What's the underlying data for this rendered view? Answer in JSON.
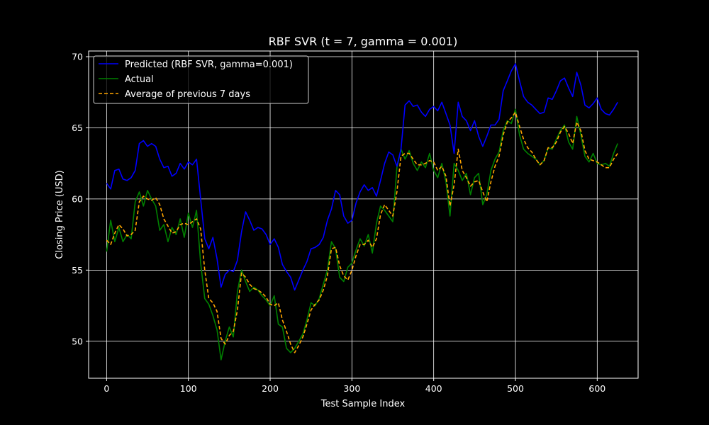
{
  "colors": {
    "background": "#000000",
    "foreground": "#ffffff",
    "predicted": "#0000ff",
    "actual": "#008000",
    "average": "#ffa500",
    "grid": "#ffffff"
  },
  "chart_data": {
    "type": "line",
    "title": "RBF SVR (t = 7, gamma = 0.001)",
    "xlabel": "Test Sample Index",
    "ylabel": "Closing Price (USD)",
    "xlim": [
      -22,
      650
    ],
    "ylim": [
      47.4,
      70.4
    ],
    "xticks": [
      0,
      100,
      200,
      300,
      400,
      500,
      600
    ],
    "yticks": [
      50,
      55,
      60,
      65,
      70
    ],
    "grid": true,
    "legend_position": "top-left",
    "series": [
      {
        "name": "Predicted (RBF SVR, gamma=0.001)",
        "color": "#0000ff",
        "style": "solid",
        "x": [
          0,
          5,
          10,
          15,
          20,
          25,
          30,
          35,
          40,
          45,
          50,
          55,
          60,
          65,
          70,
          75,
          80,
          85,
          90,
          95,
          100,
          105,
          110,
          115,
          120,
          125,
          130,
          135,
          140,
          145,
          150,
          155,
          160,
          165,
          170,
          175,
          180,
          185,
          190,
          195,
          200,
          205,
          210,
          215,
          220,
          225,
          230,
          235,
          240,
          245,
          250,
          255,
          260,
          265,
          270,
          275,
          280,
          285,
          290,
          295,
          300,
          305,
          310,
          315,
          320,
          325,
          330,
          335,
          340,
          345,
          350,
          355,
          360,
          365,
          370,
          375,
          380,
          385,
          390,
          395,
          400,
          405,
          410,
          415,
          420,
          425,
          430,
          435,
          440,
          445,
          450,
          455,
          460,
          465,
          470,
          475,
          480,
          485,
          490,
          495,
          500,
          505,
          510,
          515,
          520,
          525,
          530,
          535,
          540,
          545,
          550,
          555,
          560,
          565,
          570,
          575,
          580,
          585,
          590,
          595,
          600,
          605,
          610,
          615,
          620,
          625
        ],
        "y": [
          61.1,
          60.7,
          62.0,
          62.1,
          61.4,
          61.3,
          61.5,
          62.0,
          63.9,
          64.1,
          63.7,
          63.9,
          63.7,
          62.8,
          62.2,
          62.3,
          61.6,
          61.8,
          62.5,
          62.1,
          62.6,
          62.4,
          62.8,
          60.0,
          57.2,
          56.5,
          57.3,
          55.8,
          53.8,
          54.7,
          55.0,
          54.9,
          55.7,
          57.7,
          59.1,
          58.5,
          57.8,
          58.0,
          57.9,
          57.5,
          56.8,
          57.2,
          56.6,
          55.4,
          54.9,
          54.5,
          53.6,
          54.3,
          55.0,
          55.6,
          56.5,
          56.6,
          56.8,
          57.3,
          58.5,
          59.3,
          60.6,
          60.3,
          58.8,
          58.3,
          58.5,
          59.7,
          60.5,
          61.0,
          60.6,
          60.8,
          60.2,
          61.3,
          62.5,
          63.3,
          63.1,
          62.3,
          63.5,
          66.6,
          66.9,
          66.5,
          66.6,
          66.1,
          65.8,
          66.3,
          66.5,
          66.2,
          66.8,
          66.0,
          65.2,
          63.2,
          66.8,
          65.8,
          65.5,
          64.8,
          65.5,
          64.4,
          63.7,
          64.4,
          65.2,
          65.2,
          65.6,
          67.6,
          68.3,
          69.0,
          69.5,
          68.3,
          67.2,
          66.8,
          66.6,
          66.3,
          66.0,
          66.1,
          67.1,
          67.0,
          67.6,
          68.3,
          68.5,
          67.8,
          67.2,
          68.9,
          68.0,
          66.6,
          66.4,
          66.7,
          67.1,
          66.3,
          66.0,
          65.9,
          66.3,
          66.8
        ]
      },
      {
        "name": "Actual",
        "color": "#008000",
        "style": "solid",
        "x": [
          0,
          5,
          10,
          15,
          20,
          25,
          30,
          35,
          40,
          45,
          50,
          55,
          60,
          65,
          70,
          75,
          80,
          85,
          90,
          95,
          100,
          105,
          110,
          115,
          120,
          125,
          130,
          135,
          140,
          145,
          150,
          155,
          160,
          165,
          170,
          175,
          180,
          185,
          190,
          195,
          200,
          205,
          210,
          215,
          220,
          225,
          230,
          235,
          240,
          245,
          250,
          255,
          260,
          265,
          270,
          275,
          280,
          285,
          290,
          295,
          300,
          305,
          310,
          315,
          320,
          325,
          330,
          335,
          340,
          345,
          350,
          355,
          360,
          365,
          370,
          375,
          380,
          385,
          390,
          395,
          400,
          405,
          410,
          415,
          420,
          425,
          430,
          435,
          440,
          445,
          450,
          455,
          460,
          465,
          470,
          475,
          480,
          485,
          490,
          495,
          500,
          505,
          510,
          515,
          520,
          525,
          530,
          535,
          540,
          545,
          550,
          555,
          560,
          565,
          570,
          575,
          580,
          585,
          590,
          595,
          600,
          605,
          610,
          615,
          620,
          625
        ],
        "y": [
          56.3,
          58.5,
          57.0,
          58.0,
          57.0,
          57.5,
          57.2,
          59.8,
          60.5,
          59.5,
          60.6,
          60.0,
          59.5,
          57.8,
          58.2,
          57.0,
          58.0,
          57.5,
          58.6,
          57.3,
          59.0,
          58.0,
          59.2,
          55.5,
          53.0,
          52.6,
          51.8,
          50.8,
          48.7,
          50.0,
          51.0,
          50.3,
          53.5,
          55.0,
          54.2,
          53.5,
          53.8,
          53.6,
          53.2,
          52.9,
          52.5,
          53.2,
          51.2,
          51.0,
          49.5,
          49.2,
          49.5,
          50.0,
          50.5,
          51.5,
          52.7,
          52.5,
          53.0,
          54.0,
          55.0,
          57.0,
          56.5,
          54.5,
          54.2,
          55.2,
          55.5,
          56.4,
          57.2,
          56.7,
          57.5,
          56.2,
          58.3,
          59.5,
          59.2,
          58.8,
          58.4,
          62.2,
          63.5,
          62.8,
          63.4,
          62.5,
          62.0,
          62.6,
          62.2,
          63.2,
          62.0,
          61.5,
          62.5,
          61.2,
          58.8,
          62.5,
          62.0,
          61.3,
          61.8,
          60.3,
          61.5,
          61.8,
          59.6,
          60.3,
          62.0,
          62.8,
          63.3,
          64.8,
          65.5,
          65.3,
          66.3,
          64.5,
          63.5,
          63.2,
          63.0,
          62.8,
          62.4,
          62.7,
          63.6,
          63.5,
          64.2,
          64.8,
          65.2,
          64.0,
          63.5,
          65.8,
          64.5,
          63.0,
          62.6,
          63.2,
          62.5,
          62.4,
          62.5,
          62.3,
          63.2,
          63.9
        ]
      },
      {
        "name": "Average of previous 7 days",
        "color": "#ffa500",
        "style": "dashed",
        "x": [
          0,
          5,
          10,
          15,
          20,
          25,
          30,
          35,
          40,
          45,
          50,
          55,
          60,
          65,
          70,
          75,
          80,
          85,
          90,
          95,
          100,
          105,
          110,
          115,
          120,
          125,
          130,
          135,
          140,
          145,
          150,
          155,
          160,
          165,
          170,
          175,
          180,
          185,
          190,
          195,
          200,
          205,
          210,
          215,
          220,
          225,
          230,
          235,
          240,
          245,
          250,
          255,
          260,
          265,
          270,
          275,
          280,
          285,
          290,
          295,
          300,
          305,
          310,
          315,
          320,
          325,
          330,
          335,
          340,
          345,
          350,
          355,
          360,
          365,
          370,
          375,
          380,
          385,
          390,
          395,
          400,
          405,
          410,
          415,
          420,
          425,
          430,
          435,
          440,
          445,
          450,
          455,
          460,
          465,
          470,
          475,
          480,
          485,
          490,
          495,
          500,
          505,
          510,
          515,
          520,
          525,
          530,
          535,
          540,
          545,
          550,
          555,
          560,
          565,
          570,
          575,
          580,
          585,
          590,
          595,
          600,
          605,
          610,
          615,
          620,
          625
        ],
        "y": [
          57.1,
          56.8,
          57.6,
          58.2,
          57.9,
          57.4,
          57.5,
          57.8,
          59.8,
          60.2,
          60.0,
          59.9,
          60.1,
          59.6,
          58.6,
          58.1,
          57.6,
          57.7,
          58.2,
          58.3,
          58.2,
          58.4,
          58.6,
          57.9,
          55.0,
          53.0,
          52.7,
          52.1,
          50.2,
          49.8,
          50.4,
          50.7,
          52.2,
          54.8,
          54.5,
          54.0,
          53.7,
          53.6,
          53.4,
          53.1,
          52.6,
          52.5,
          52.7,
          51.5,
          50.7,
          49.8,
          49.2,
          49.7,
          50.3,
          51.2,
          52.2,
          52.6,
          52.9,
          53.6,
          54.6,
          56.5,
          56.6,
          55.3,
          54.6,
          54.3,
          55.0,
          56.0,
          56.8,
          56.8,
          57.1,
          56.6,
          57.2,
          58.9,
          59.6,
          59.2,
          58.8,
          60.5,
          63.0,
          63.2,
          63.2,
          62.8,
          62.4,
          62.4,
          62.5,
          62.7,
          62.6,
          62.0,
          62.3,
          61.6,
          59.5,
          61.0,
          63.5,
          62.0,
          61.5,
          60.9,
          61.2,
          61.3,
          60.5,
          59.8,
          61.2,
          62.3,
          63.0,
          64.5,
          65.4,
          65.7,
          66.1,
          65.1,
          64.2,
          63.6,
          63.3,
          62.8,
          62.4,
          62.7,
          63.6,
          63.6,
          64.0,
          64.7,
          65.1,
          64.6,
          63.9,
          65.4,
          64.8,
          63.4,
          62.8,
          62.7,
          62.6,
          62.4,
          62.2,
          62.2,
          62.8,
          63.2
        ]
      }
    ]
  }
}
